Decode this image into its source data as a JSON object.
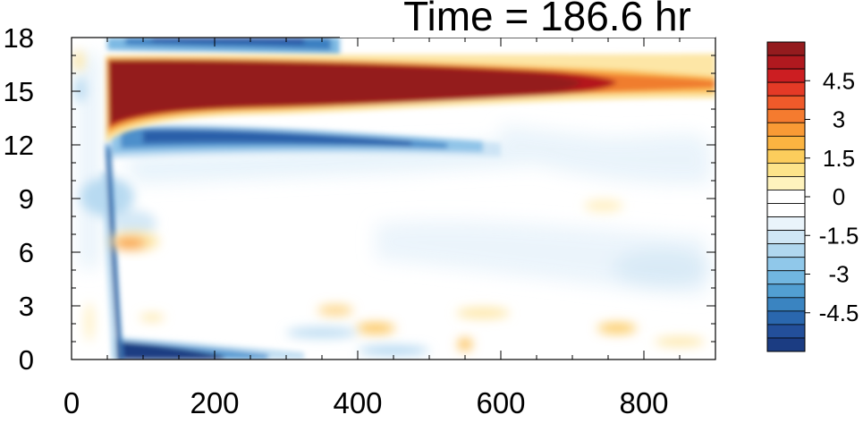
{
  "chart_data": {
    "type": "heatmap",
    "title": "Time = 186.6 hr",
    "xlabel": "",
    "ylabel": "",
    "xlim": [
      0,
      900
    ],
    "ylim": [
      0,
      18
    ],
    "x_ticks": [
      "0",
      "200",
      "400",
      "600",
      "800"
    ],
    "y_ticks": [
      "0",
      "3",
      "6",
      "9",
      "12",
      "15",
      "18"
    ],
    "colorbar": {
      "range": [
        -6,
        6
      ],
      "step": 0.5,
      "tick_labels": [
        "4.5",
        "3",
        "1.5",
        "0",
        "-1.5",
        "-3",
        "-4.5"
      ],
      "colors": [
        "#941b1e",
        "#b0191f",
        "#cc1e22",
        "#e43a26",
        "#ef5a2a",
        "#f57b2f",
        "#f99a35",
        "#fbb441",
        "#fccd5c",
        "#fde48a",
        "#fff3bd",
        "#ffffff",
        "#ffffff",
        "#eaf4fb",
        "#cfe6f5",
        "#b0d7ef",
        "#90c8ea",
        "#71b6e0",
        "#529fd2",
        "#3a84c1",
        "#2a67ae",
        "#234f9a",
        "#1b3c82"
      ]
    },
    "features": [
      {
        "name": "upper positive band",
        "x_range": [
          60,
          900
        ],
        "y_center": 15.2,
        "peak_value": 6
      },
      {
        "name": "negative band below",
        "x_range": [
          60,
          560
        ],
        "y_center": 12.4,
        "peak_value": -5
      },
      {
        "name": "negative band near top",
        "x_range": [
          60,
          380
        ],
        "y_center": 17.6,
        "peak_value": -4.5
      },
      {
        "name": "negative surface band",
        "x_range": [
          60,
          330
        ],
        "y_center": 0.5,
        "peak_value": -6
      },
      {
        "name": "vertical negative front",
        "x": 58,
        "y_range": [
          0,
          11
        ],
        "peak_value": -6
      },
      {
        "name": "positive patch",
        "x": 95,
        "y_center": 6.5,
        "peak_value": 2.5
      }
    ]
  }
}
